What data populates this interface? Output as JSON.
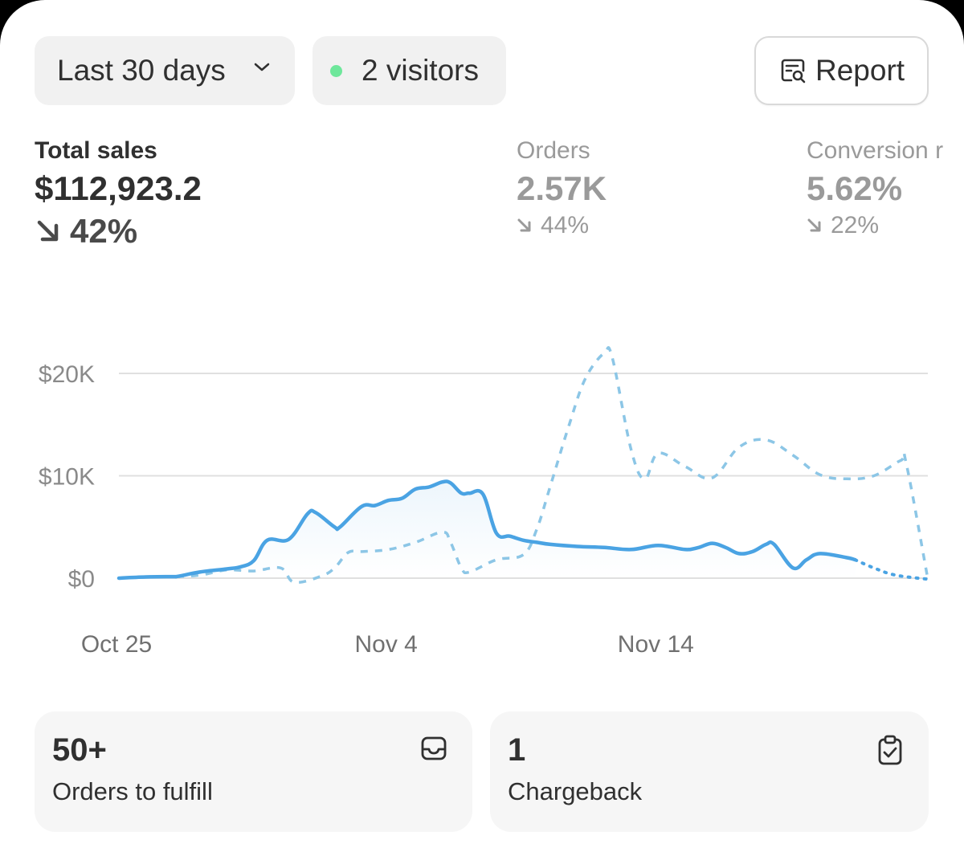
{
  "filters": {
    "range_label": "Last 30 days",
    "visitors_label": "2 visitors",
    "live_dot_color": "#6ee79b",
    "report_label": "Report"
  },
  "metrics": [
    {
      "label": "Total sales",
      "value": "$112,923.2",
      "change": "42%",
      "direction": "down",
      "active": true
    },
    {
      "label": "Orders",
      "value": "2.57K",
      "change": "44%",
      "direction": "down",
      "active": false
    },
    {
      "label": "Conversion r",
      "value": "5.62%",
      "change": "22%",
      "direction": "down",
      "active": false
    }
  ],
  "chart_data": {
    "type": "line",
    "y_ticks": [
      "$0",
      "$10K",
      "$20K"
    ],
    "y_tick_values": [
      0,
      10000,
      20000
    ],
    "x_tick_labels": [
      "Oct 25",
      "Nov 4",
      "Nov 14"
    ],
    "x_tick_days": [
      0,
      10,
      20
    ],
    "ylim": [
      0,
      20000
    ],
    "xlim": [
      0,
      30
    ],
    "grid": true,
    "series": [
      {
        "name": "current",
        "style": "solid",
        "color": "#4aa3e3",
        "points": [
          [
            0,
            0
          ],
          [
            1,
            120
          ],
          [
            2,
            150
          ],
          [
            2.2,
            180
          ],
          [
            3,
            600
          ],
          [
            4,
            900
          ],
          [
            4.5,
            1100
          ],
          [
            5,
            1700
          ],
          [
            5.5,
            3700
          ],
          [
            6.3,
            3800
          ],
          [
            7,
            6300
          ],
          [
            7.3,
            6400
          ],
          [
            8,
            5000
          ],
          [
            8.2,
            5000
          ],
          [
            9,
            7000
          ],
          [
            9.5,
            7100
          ],
          [
            10,
            7600
          ],
          [
            10.5,
            7800
          ],
          [
            11,
            8700
          ],
          [
            11.5,
            8900
          ],
          [
            12,
            9400
          ],
          [
            12.3,
            9300
          ],
          [
            12.7,
            8300
          ],
          [
            13,
            8300
          ],
          [
            13.5,
            8200
          ],
          [
            14,
            4400
          ],
          [
            14.5,
            4100
          ],
          [
            15,
            3700
          ],
          [
            15.5,
            3500
          ],
          [
            16,
            3300
          ],
          [
            17,
            3100
          ],
          [
            18,
            3000
          ],
          [
            19,
            2800
          ],
          [
            20,
            3200
          ],
          [
            21,
            2800
          ],
          [
            21.5,
            3000
          ],
          [
            22,
            3400
          ],
          [
            22.5,
            3000
          ],
          [
            23,
            2400
          ],
          [
            23.5,
            2600
          ],
          [
            24,
            3300
          ],
          [
            24.3,
            3300
          ],
          [
            25,
            1000
          ],
          [
            25.5,
            1800
          ],
          [
            26,
            2400
          ],
          [
            27,
            2000
          ],
          [
            27.3,
            1800
          ]
        ]
      },
      {
        "name": "previous",
        "style": "dashed",
        "color": "#8cc6e6",
        "points": [
          [
            0,
            0
          ],
          [
            1,
            120
          ],
          [
            2,
            150
          ],
          [
            3,
            300
          ],
          [
            4,
            800
          ],
          [
            5,
            700
          ],
          [
            6,
            1000
          ],
          [
            6.5,
            -400
          ],
          [
            7.5,
            200
          ],
          [
            8,
            1000
          ],
          [
            8.5,
            2500
          ],
          [
            9,
            2600
          ],
          [
            10,
            2800
          ],
          [
            11,
            3500
          ],
          [
            12,
            4500
          ],
          [
            12.3,
            3500
          ],
          [
            12.7,
            1000
          ],
          [
            13,
            600
          ],
          [
            14,
            1800
          ],
          [
            15,
            2300
          ],
          [
            15.5,
            4800
          ],
          [
            16,
            9000
          ],
          [
            16.7,
            15000
          ],
          [
            17.3,
            19500
          ],
          [
            18,
            22000
          ],
          [
            18.3,
            21500
          ],
          [
            19,
            12500
          ],
          [
            19.5,
            9700
          ],
          [
            20,
            12200
          ],
          [
            21,
            10900
          ],
          [
            22,
            9800
          ],
          [
            23,
            12800
          ],
          [
            24,
            13500
          ],
          [
            25,
            12000
          ],
          [
            26,
            10100
          ],
          [
            27,
            9700
          ],
          [
            28,
            10000
          ],
          [
            29,
            11500
          ],
          [
            29.2,
            11200
          ],
          [
            30,
            -100
          ]
        ]
      },
      {
        "name": "current-projection",
        "style": "dotted",
        "color": "#4aa3e3",
        "points": [
          [
            27.3,
            1800
          ],
          [
            28,
            1000
          ],
          [
            28.8,
            300
          ],
          [
            30,
            -100
          ]
        ]
      }
    ]
  },
  "cards": [
    {
      "value": "50+",
      "label": "Orders to fulfill",
      "icon": "inbox-icon"
    },
    {
      "value": "1",
      "label": "Chargeback",
      "icon": "clipboard-check-icon"
    }
  ]
}
